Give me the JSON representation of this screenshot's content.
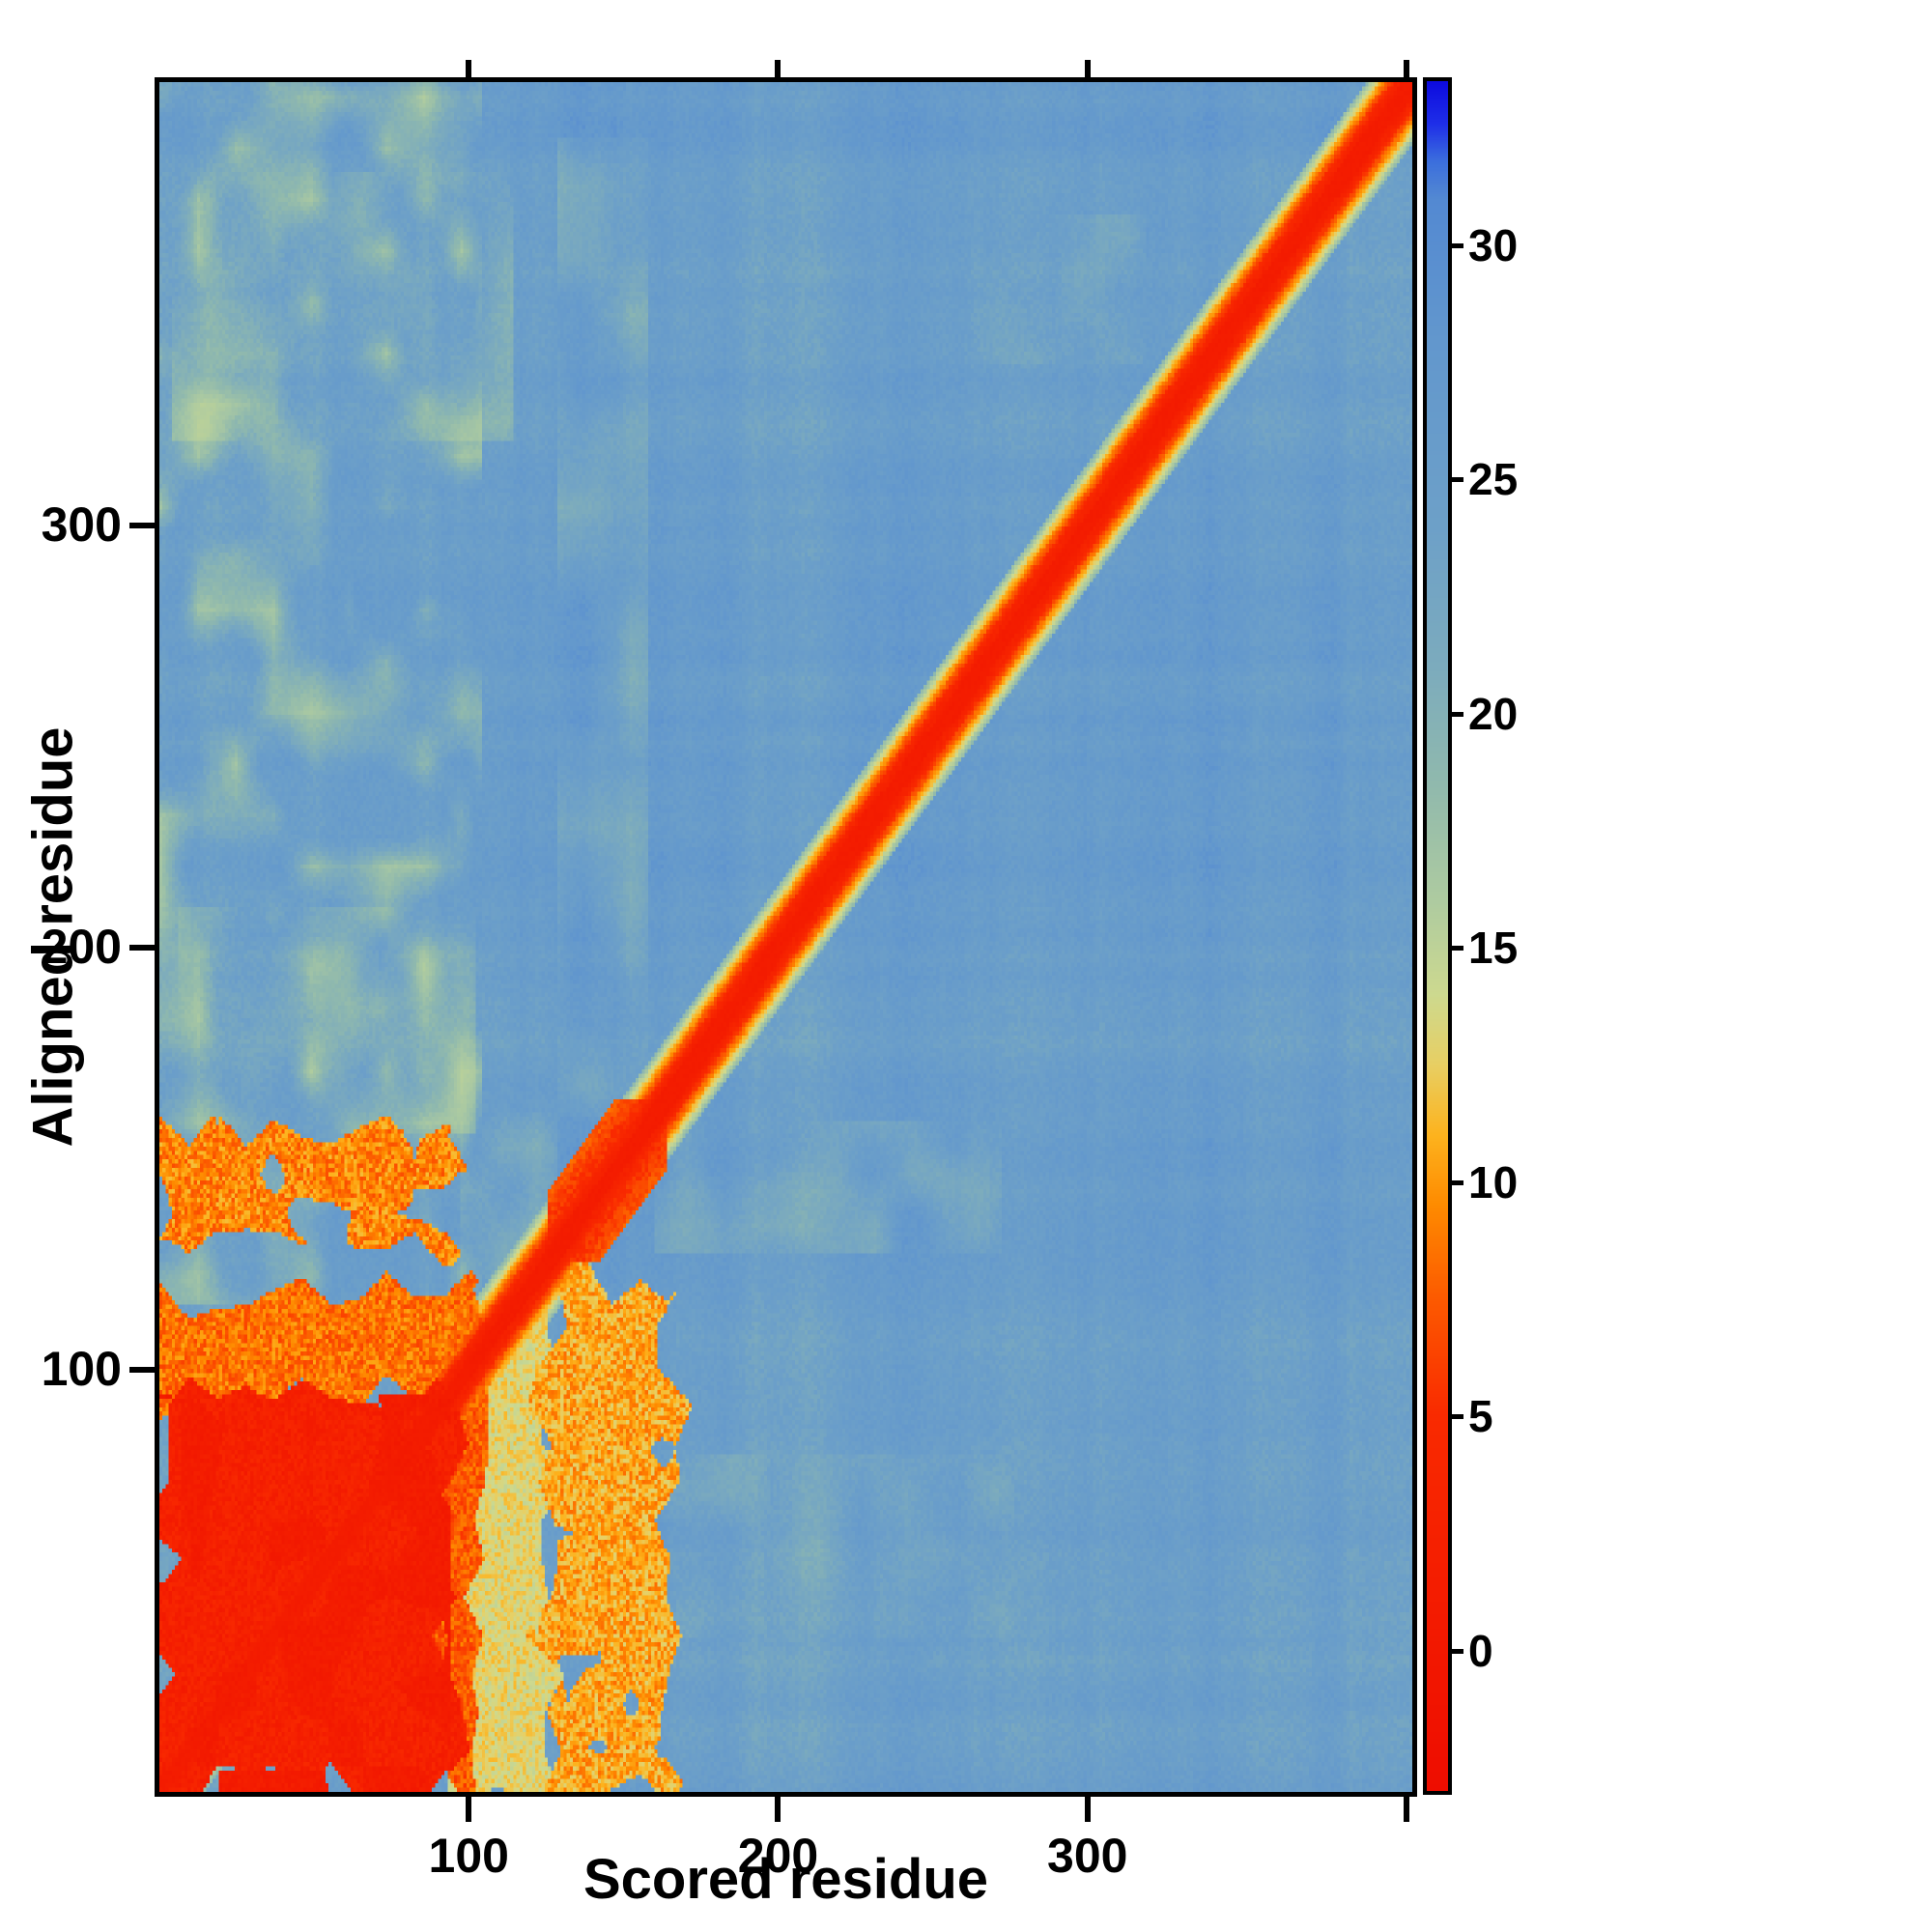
{
  "chart_data": {
    "type": "heatmap",
    "title": "",
    "xlabel": "Scored residue",
    "ylabel": "Aligned residue",
    "x_range": [
      0,
      405
    ],
    "y_range": [
      0,
      405
    ],
    "x_ticks": [
      100,
      200,
      300
    ],
    "x_edge_ticks": [
      403
    ],
    "y_ticks": [
      100,
      200,
      300
    ],
    "grid": false,
    "legend_position": "right-colorbar",
    "colorbar": {
      "min": -3,
      "max": 33.5,
      "ticks": [
        0,
        5,
        10,
        15,
        20,
        25,
        30
      ],
      "stops": [
        [
          -3,
          "#ee0d00"
        ],
        [
          5,
          "#f92a00"
        ],
        [
          7.5,
          "#fc5a00"
        ],
        [
          9.5,
          "#fe8b00"
        ],
        [
          11,
          "#fdb31e"
        ],
        [
          12.5,
          "#e8cf63"
        ],
        [
          14,
          "#cdd98f"
        ],
        [
          16,
          "#aecba0"
        ],
        [
          18.5,
          "#90b9ad"
        ],
        [
          21,
          "#7cabbd"
        ],
        [
          24,
          "#6da0c8"
        ],
        [
          28,
          "#6297cd"
        ],
        [
          31,
          "#5389d2"
        ],
        [
          31.8,
          "#3c6fdd"
        ],
        [
          32.6,
          "#1f2fe8"
        ],
        [
          33.5,
          "#0d0bdf"
        ]
      ]
    },
    "matrix": {
      "size": 400,
      "background_value": 25,
      "description": "Pairwise residue alignment-error matrix: low values (red) on the main diagonal, a large low-error block for residues 1-95, orange cross-bands near residues 125-160, high values (blue) elsewhere.",
      "features": [
        {
          "type": "tint",
          "name": "left-region-green-streaks",
          "x": [
            0,
            102
          ],
          "y": [
            114,
            399
          ],
          "value": 14,
          "blend": 0.8,
          "patch_scale": 12,
          "patch_threshold": 0.45
        },
        {
          "type": "tint",
          "name": "top-left-smudge",
          "x": [
            4,
            112
          ],
          "y": [
            316,
            378
          ],
          "value": 14,
          "blend": 0.55,
          "patch_scale": 16,
          "patch_threshold": 0.35
        },
        {
          "type": "tint",
          "name": "left-mid-smudge",
          "x": [
            6,
            100
          ],
          "y": [
            154,
            206
          ],
          "value": 14,
          "blend": 0.5,
          "patch_scale": 14,
          "patch_threshold": 0.35
        },
        {
          "type": "tint",
          "name": "pale-column-above-blob",
          "x": [
            127,
            155
          ],
          "y": [
            158,
            386
          ],
          "value": 15,
          "blend": 0.55,
          "patch_scale": 15,
          "patch_threshold": 0.3
        },
        {
          "type": "tint",
          "name": "gap-left-of-blob",
          "x": [
            96,
            126
          ],
          "y": [
            120,
            158
          ],
          "value": 14,
          "blend": 0.6,
          "patch_scale": 10,
          "patch_threshold": 0.25
        },
        {
          "type": "tint",
          "name": "pale-row-right-of-blob",
          "x": [
            158,
            268
          ],
          "y": [
            126,
            156
          ],
          "value": 15,
          "blend": 0.5,
          "patch_scale": 12,
          "patch_threshold": 0.3
        },
        {
          "type": "tint",
          "name": "lower-right-smudge",
          "x": [
            158,
            272
          ],
          "y": [
            36,
            78
          ],
          "value": 16,
          "blend": 0.45,
          "patch_scale": 14,
          "patch_threshold": 0.35
        },
        {
          "type": "tint",
          "name": "mid-right-smudge",
          "x": [
            260,
            314
          ],
          "y": [
            334,
            368
          ],
          "value": 16,
          "blend": 0.4,
          "patch_scale": 14,
          "patch_threshold": 0.35
        },
        {
          "type": "fill",
          "name": "yellow-column",
          "x": [
            92,
            125
          ],
          "y": [
            0,
            117
          ],
          "value": 13,
          "noise": 1.8,
          "ragged": 5
        },
        {
          "type": "fill",
          "name": "block-right-rim",
          "x": [
            87,
            100
          ],
          "y": [
            0,
            95
          ],
          "value": 7.4,
          "noise": 2,
          "ragged": 5
        },
        {
          "type": "fill",
          "name": "orange-cross-column",
          "x": [
            123,
            163
          ],
          "y": [
            0,
            120
          ],
          "value": 10.6,
          "noise": 2.4,
          "ragged": 7,
          "patch_scale": 10,
          "patch_threshold": 0.24
        },
        {
          "type": "fill",
          "name": "orange-rows",
          "x": [
            0,
            96
          ],
          "y": [
            126,
            154
          ],
          "value": 9.2,
          "noise": 2.4,
          "ragged": 5,
          "patch_scale": 9,
          "patch_threshold": 0.3
        },
        {
          "type": "fill",
          "name": "orange-band-above-block",
          "x": [
            0,
            102
          ],
          "y": [
            91,
            116
          ],
          "value": 8.4,
          "noise": 2.2,
          "ragged": 6
        },
        {
          "type": "fill",
          "name": "red-block",
          "x": [
            0,
            92
          ],
          "y": [
            0,
            92
          ],
          "value": 2.4,
          "noise": 2.0,
          "ragged": 7
        },
        {
          "type": "fill",
          "name": "red-block-mottle",
          "x": [
            0,
            92
          ],
          "y": [
            0,
            92
          ],
          "value": 1.1,
          "noise": 1.2,
          "ragged": 0,
          "patch_scale": 12,
          "patch_threshold": 0.55,
          "min": true
        },
        {
          "type": "diag",
          "name": "main-diagonal",
          "core_width": 2.2,
          "core_value": 0.7,
          "wobble": 2.2,
          "fringe": [
            [
              5,
              3.4
            ],
            [
              8,
              7.8
            ],
            [
              11,
              12.5
            ],
            [
              14,
              18
            ]
          ]
        },
        {
          "type": "diagblob",
          "name": "diagonal-blob",
          "x": [
            124,
            161
          ],
          "y": [
            124,
            161
          ],
          "limit": 16,
          "value": 3.0,
          "noise": 2.2
        }
      ]
    },
    "style": {
      "frame_color": "#000000",
      "background": "#ffffff",
      "text_color": "#000000"
    }
  }
}
